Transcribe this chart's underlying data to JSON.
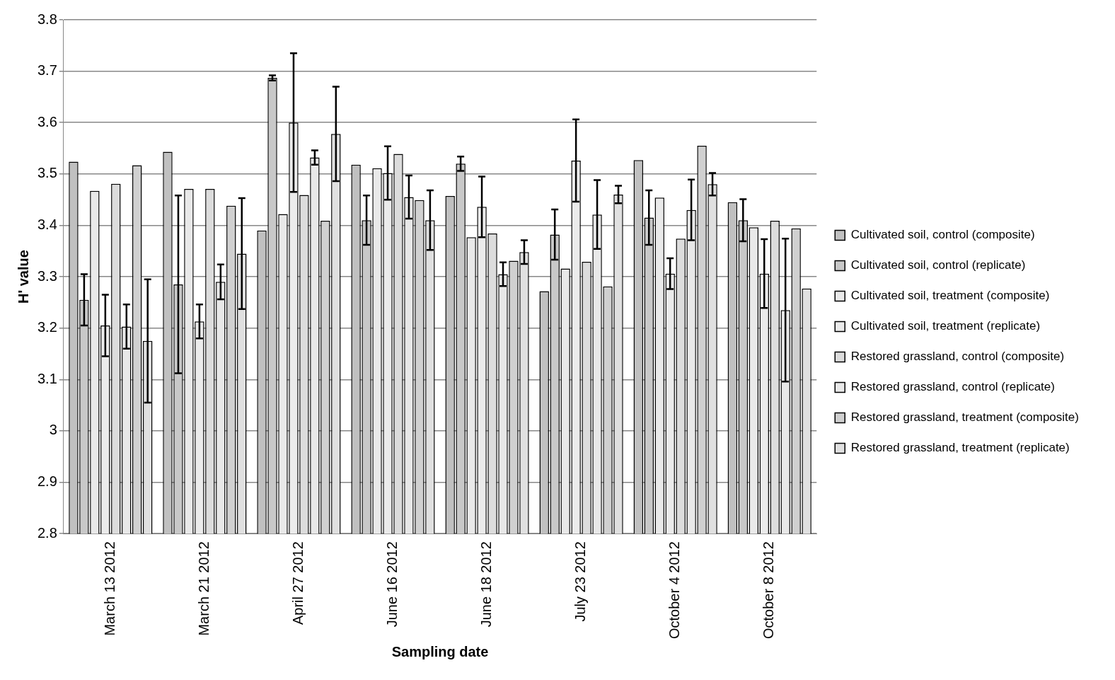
{
  "chart_data": {
    "type": "bar",
    "xlabel": "Sampling date",
    "ylabel": "H' value",
    "categories": [
      "March 13 2012",
      "March 21 2012",
      "April 27 2012",
      "June 16 2012",
      "June 18 2012",
      "July 23 2012",
      "October 4 2012",
      "October 8 2012"
    ],
    "ylim": [
      2.8,
      3.8
    ],
    "yticks": [
      2.8,
      2.9,
      3,
      3.1,
      3.2,
      3.3,
      3.4,
      3.5,
      3.6,
      3.7,
      3.8
    ],
    "grid": "y",
    "legend": "right",
    "series": [
      {
        "name": "Cultivated soil, control (composite)",
        "color": "#c0c0c0",
        "values": [
          3.524,
          3.543,
          3.39,
          3.518,
          3.457,
          3.272,
          3.527,
          3.445
        ]
      },
      {
        "name": "Cultivated soil, control (replicate)",
        "color": "#c8c8c8",
        "values": [
          3.255,
          3.285,
          3.687,
          3.41,
          3.52,
          3.382,
          3.415,
          3.41
        ],
        "errors": [
          0.05,
          0.173,
          0.005,
          0.048,
          0.014,
          0.049,
          0.053,
          0.041
        ]
      },
      {
        "name": "Cultivated soil, treatment (composite)",
        "color": "#e9e9e9",
        "values": [
          3.467,
          3.471,
          3.422,
          3.511,
          3.377,
          3.316,
          3.454,
          3.396
        ]
      },
      {
        "name": "Cultivated soil, treatment (replicate)",
        "color": "#ebebeb",
        "values": [
          3.205,
          3.213,
          3.6,
          3.502,
          3.436,
          3.526,
          3.306,
          3.306
        ],
        "errors": [
          0.06,
          0.033,
          0.135,
          0.052,
          0.059,
          0.08,
          0.03,
          0.067
        ]
      },
      {
        "name": "Restored grassland, control (composite)",
        "color": "#dcdcdc",
        "values": [
          3.481,
          3.471,
          3.459,
          3.539,
          3.384,
          3.329,
          3.374,
          3.409
        ]
      },
      {
        "name": "Restored grassland, control (replicate)",
        "color": "#e8e8e8",
        "values": [
          3.203,
          3.29,
          3.532,
          3.455,
          3.305,
          3.421,
          3.43,
          3.235
        ],
        "errors": [
          0.043,
          0.034,
          0.014,
          0.042,
          0.023,
          0.067,
          0.059,
          0.139
        ]
      },
      {
        "name": "Restored grassland, treatment (composite)",
        "color": "#d0d0d0",
        "values": [
          3.517,
          3.438,
          3.409,
          3.449,
          3.331,
          3.281,
          3.555,
          3.394
        ]
      },
      {
        "name": "Restored grassland, treatment (replicate)",
        "color": "#e0e0e0",
        "values": [
          3.175,
          3.345,
          3.578,
          3.41,
          3.348,
          3.46,
          3.48,
          3.277
        ],
        "errors": [
          0.12,
          0.108,
          0.092,
          0.058,
          0.023,
          0.017,
          0.022,
          null
        ]
      }
    ]
  }
}
